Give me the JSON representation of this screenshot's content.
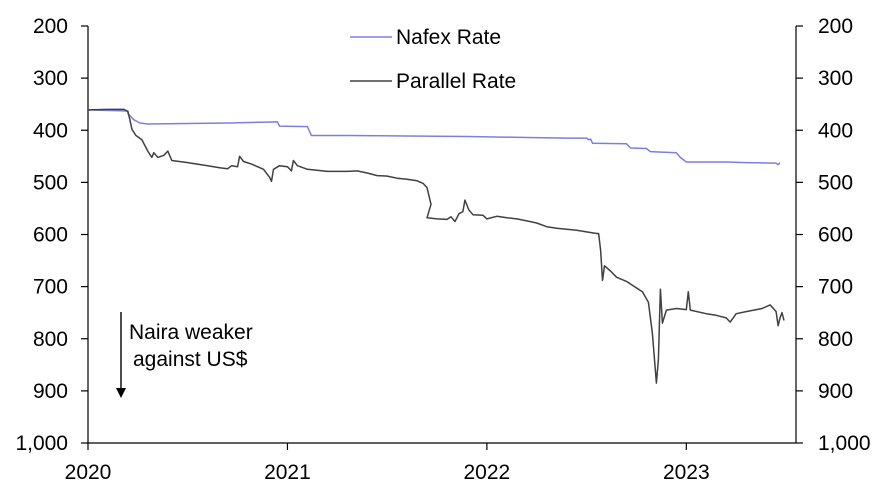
{
  "chart_data": {
    "type": "line",
    "x_axis": {
      "ticks": [
        "2020",
        "2021",
        "2022",
        "2023"
      ],
      "range": [
        2020.0,
        2023.55
      ]
    },
    "y_axis_left": {
      "inverted": true,
      "range": [
        200,
        1000
      ],
      "ticks": [
        "200",
        "300",
        "400",
        "500",
        "600",
        "700",
        "800",
        "900",
        "1,000"
      ]
    },
    "y_axis_right": {
      "inverted": true,
      "range": [
        200,
        1000
      ],
      "ticks": [
        "200",
        "300",
        "400",
        "500",
        "600",
        "700",
        "800",
        "900",
        "1,000"
      ]
    },
    "grid": false,
    "legend_position": "top-center",
    "series": [
      {
        "name": "Nafex Rate",
        "color": "#7b7fe0",
        "points": [
          [
            2020.0,
            361
          ],
          [
            2020.2,
            363
          ],
          [
            2020.2,
            368
          ],
          [
            2020.23,
            380
          ],
          [
            2020.26,
            386
          ],
          [
            2020.3,
            388
          ],
          [
            2020.5,
            387
          ],
          [
            2020.7,
            386
          ],
          [
            2020.95,
            384
          ],
          [
            2020.96,
            392
          ],
          [
            2021.1,
            393
          ],
          [
            2021.12,
            410
          ],
          [
            2021.3,
            410
          ],
          [
            2021.6,
            411
          ],
          [
            2021.9,
            412
          ],
          [
            2022.2,
            414
          ],
          [
            2022.4,
            415
          ],
          [
            2022.5,
            415
          ],
          [
            2022.51,
            418
          ],
          [
            2022.52,
            417
          ],
          [
            2022.53,
            425
          ],
          [
            2022.7,
            426
          ],
          [
            2022.72,
            434
          ],
          [
            2022.8,
            435
          ],
          [
            2022.82,
            441
          ],
          [
            2022.95,
            443
          ],
          [
            2022.97,
            452
          ],
          [
            2023.0,
            461
          ],
          [
            2023.2,
            461
          ],
          [
            2023.3,
            462
          ],
          [
            2023.45,
            463
          ],
          [
            2023.46,
            466
          ],
          [
            2023.47,
            462
          ]
        ]
      },
      {
        "name": "Parallel Rate",
        "color": "#404040",
        "points": [
          [
            2020.0,
            361
          ],
          [
            2020.1,
            360
          ],
          [
            2020.18,
            360
          ],
          [
            2020.2,
            364
          ],
          [
            2020.21,
            380
          ],
          [
            2020.22,
            398
          ],
          [
            2020.24,
            410
          ],
          [
            2020.27,
            418
          ],
          [
            2020.3,
            440
          ],
          [
            2020.32,
            452
          ],
          [
            2020.33,
            443
          ],
          [
            2020.35,
            452
          ],
          [
            2020.38,
            448
          ],
          [
            2020.4,
            440
          ],
          [
            2020.42,
            458
          ],
          [
            2020.5,
            462
          ],
          [
            2020.6,
            468
          ],
          [
            2020.66,
            472
          ],
          [
            2020.7,
            474
          ],
          [
            2020.72,
            468
          ],
          [
            2020.75,
            470
          ],
          [
            2020.76,
            450
          ],
          [
            2020.78,
            460
          ],
          [
            2020.82,
            465
          ],
          [
            2020.88,
            475
          ],
          [
            2020.91,
            490
          ],
          [
            2020.92,
            498
          ],
          [
            2020.93,
            475
          ],
          [
            2020.96,
            468
          ],
          [
            2021.0,
            470
          ],
          [
            2021.02,
            478
          ],
          [
            2021.03,
            458
          ],
          [
            2021.05,
            468
          ],
          [
            2021.1,
            475
          ],
          [
            2021.2,
            479
          ],
          [
            2021.3,
            479
          ],
          [
            2021.35,
            478
          ],
          [
            2021.4,
            482
          ],
          [
            2021.45,
            487
          ],
          [
            2021.5,
            488
          ],
          [
            2021.55,
            492
          ],
          [
            2021.6,
            494
          ],
          [
            2021.65,
            497
          ],
          [
            2021.68,
            502
          ],
          [
            2021.7,
            510
          ],
          [
            2021.72,
            542
          ],
          [
            2021.7,
            568
          ],
          [
            2021.75,
            570
          ],
          [
            2021.8,
            571
          ],
          [
            2021.82,
            566
          ],
          [
            2021.84,
            575
          ],
          [
            2021.86,
            560
          ],
          [
            2021.88,
            556
          ],
          [
            2021.89,
            534
          ],
          [
            2021.91,
            553
          ],
          [
            2021.93,
            562
          ],
          [
            2021.98,
            563
          ],
          [
            2022.0,
            570
          ],
          [
            2022.05,
            565
          ],
          [
            2022.1,
            568
          ],
          [
            2022.15,
            570
          ],
          [
            2022.2,
            574
          ],
          [
            2022.25,
            578
          ],
          [
            2022.3,
            585
          ],
          [
            2022.35,
            588
          ],
          [
            2022.4,
            590
          ],
          [
            2022.45,
            592
          ],
          [
            2022.5,
            595
          ],
          [
            2022.55,
            598
          ],
          [
            2022.56,
            598
          ],
          [
            2022.57,
            630
          ],
          [
            2022.58,
            688
          ],
          [
            2022.59,
            660
          ],
          [
            2022.62,
            670
          ],
          [
            2022.65,
            682
          ],
          [
            2022.7,
            690
          ],
          [
            2022.74,
            700
          ],
          [
            2022.78,
            710
          ],
          [
            2022.81,
            730
          ],
          [
            2022.83,
            790
          ],
          [
            2022.85,
            885
          ],
          [
            2022.86,
            840
          ],
          [
            2022.87,
            705
          ],
          [
            2022.88,
            770
          ],
          [
            2022.9,
            745
          ],
          [
            2022.95,
            742
          ],
          [
            2023.0,
            744
          ],
          [
            2023.01,
            710
          ],
          [
            2023.02,
            745
          ],
          [
            2023.1,
            752
          ],
          [
            2023.15,
            755
          ],
          [
            2023.2,
            760
          ],
          [
            2023.22,
            768
          ],
          [
            2023.25,
            752
          ],
          [
            2023.3,
            748
          ],
          [
            2023.38,
            742
          ],
          [
            2023.42,
            735
          ],
          [
            2023.45,
            748
          ],
          [
            2023.46,
            775
          ],
          [
            2023.47,
            760
          ],
          [
            2023.48,
            750
          ],
          [
            2023.49,
            765
          ]
        ]
      }
    ],
    "annotation": {
      "lines": [
        "Naira weaker",
        "against US$"
      ]
    }
  }
}
